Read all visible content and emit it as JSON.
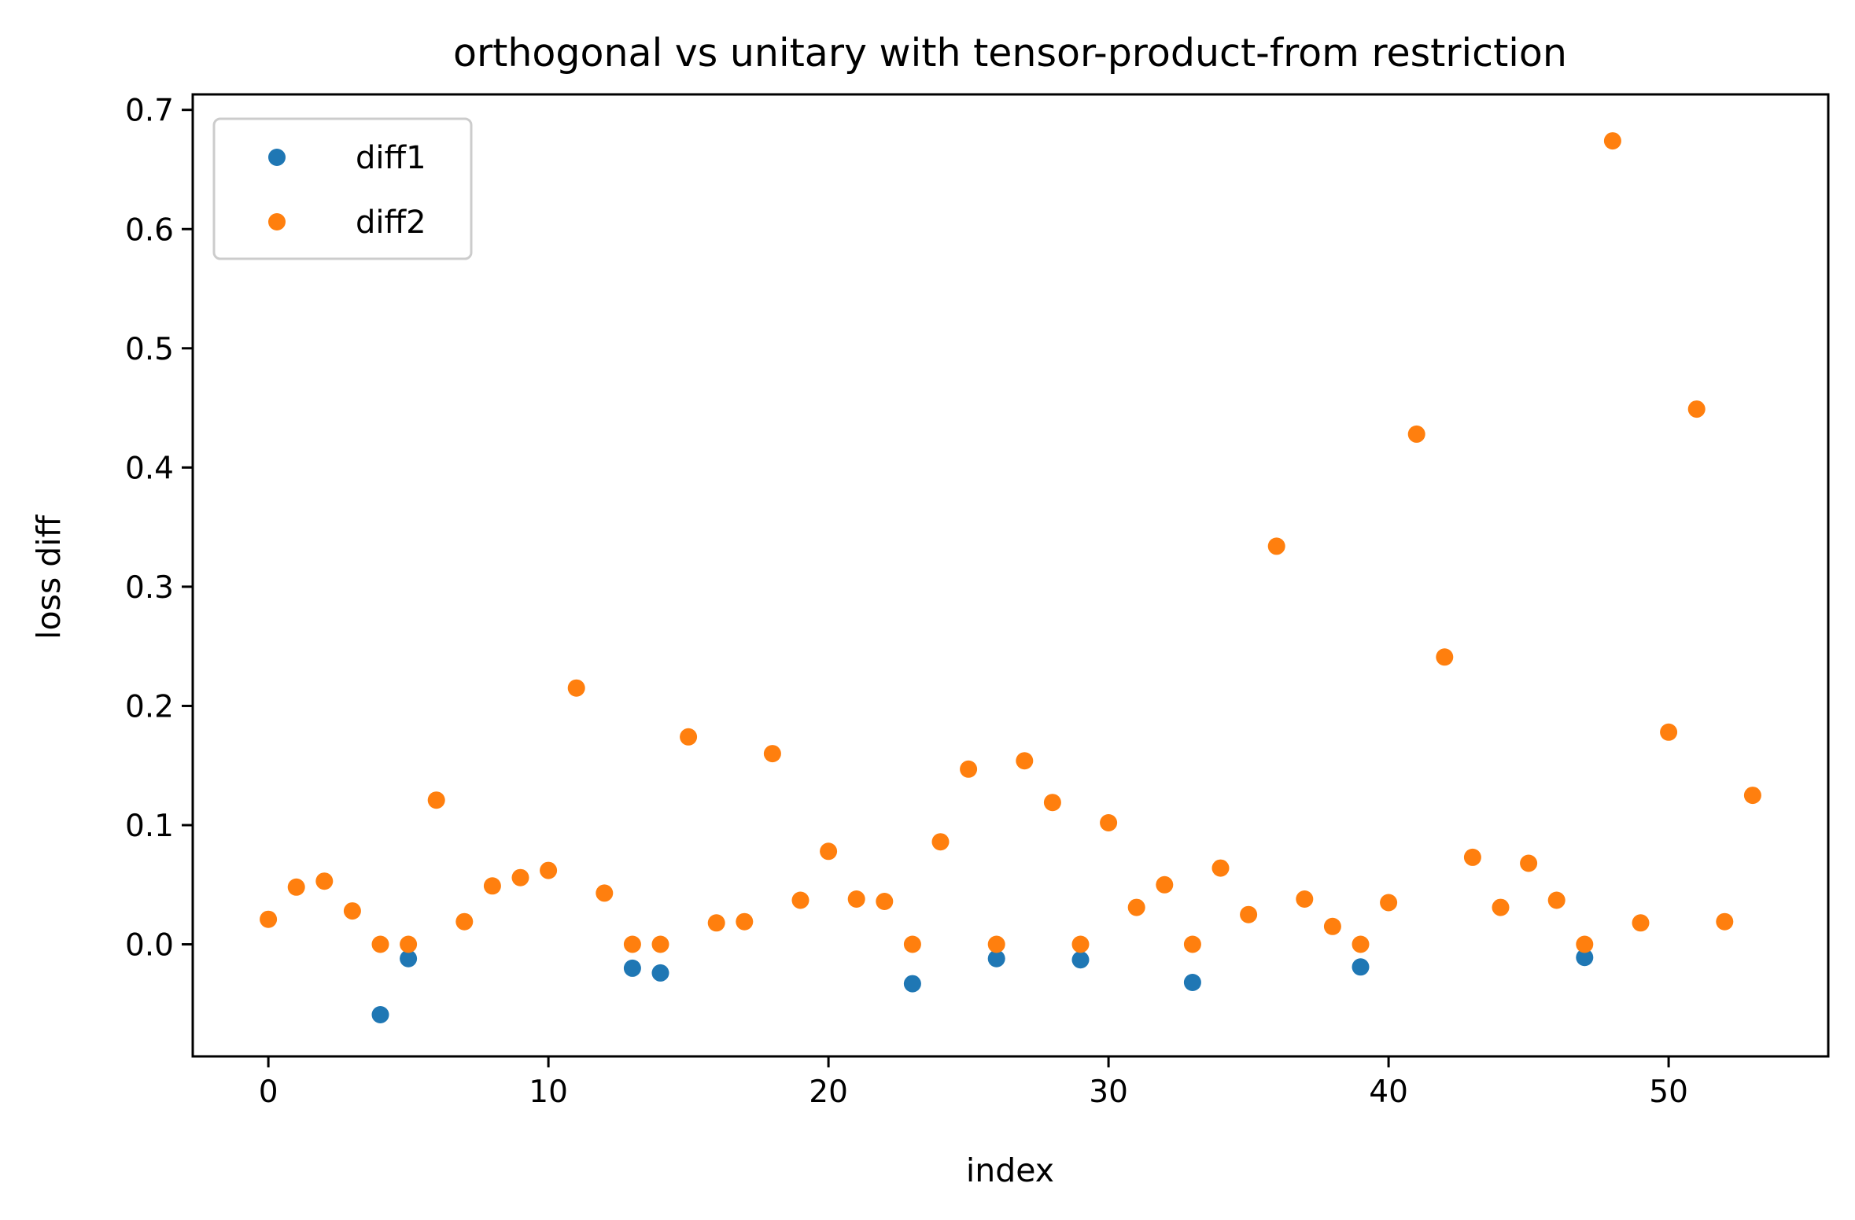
{
  "chart_data": {
    "type": "scatter",
    "title": "orthogonal vs unitary with tensor-product-from restriction",
    "xlabel": "index",
    "ylabel": "loss diff",
    "xlim": [
      -2.7,
      55.7
    ],
    "ylim": [
      -0.094,
      0.713
    ],
    "xticks": [
      0,
      10,
      20,
      30,
      40,
      50
    ],
    "xtick_labels": [
      "0",
      "10",
      "20",
      "30",
      "40",
      "50"
    ],
    "yticks": [
      0.0,
      0.1,
      0.2,
      0.3,
      0.4,
      0.5,
      0.6,
      0.7
    ],
    "ytick_labels": [
      "0.0",
      "0.1",
      "0.2",
      "0.3",
      "0.4",
      "0.5",
      "0.6",
      "0.7"
    ],
    "grid": false,
    "legend_position": "top-left",
    "series": [
      {
        "name": "diff1",
        "color": "#1f77b4",
        "x": [
          4,
          5,
          13,
          14,
          23,
          26,
          29,
          33,
          39,
          47
        ],
        "y": [
          -0.059,
          -0.012,
          -0.02,
          -0.024,
          -0.033,
          -0.012,
          -0.013,
          -0.032,
          -0.019,
          -0.011
        ]
      },
      {
        "name": "diff2",
        "color": "#ff7f0e",
        "x": [
          0,
          1,
          2,
          3,
          4,
          5,
          6,
          7,
          8,
          9,
          10,
          11,
          12,
          13,
          14,
          15,
          16,
          17,
          18,
          19,
          20,
          21,
          22,
          23,
          24,
          25,
          26,
          27,
          28,
          29,
          30,
          31,
          32,
          33,
          34,
          35,
          36,
          37,
          38,
          39,
          40,
          41,
          42,
          43,
          44,
          45,
          46,
          47,
          48,
          49,
          50,
          51,
          52,
          53
        ],
        "y": [
          0.021,
          0.048,
          0.053,
          0.028,
          0.0,
          0.0,
          0.121,
          0.019,
          0.049,
          0.056,
          0.062,
          0.215,
          0.043,
          0.0,
          0.0,
          0.174,
          0.018,
          0.019,
          0.16,
          0.037,
          0.078,
          0.038,
          0.036,
          0.0,
          0.086,
          0.147,
          0.0,
          0.154,
          0.119,
          0.0,
          0.102,
          0.031,
          0.05,
          0.0,
          0.064,
          0.025,
          0.334,
          0.038,
          0.015,
          0.0,
          0.035,
          0.428,
          0.241,
          0.073,
          0.031,
          0.068,
          0.037,
          0.0,
          0.674,
          0.018,
          0.178,
          0.449,
          0.019,
          0.125
        ]
      }
    ]
  }
}
